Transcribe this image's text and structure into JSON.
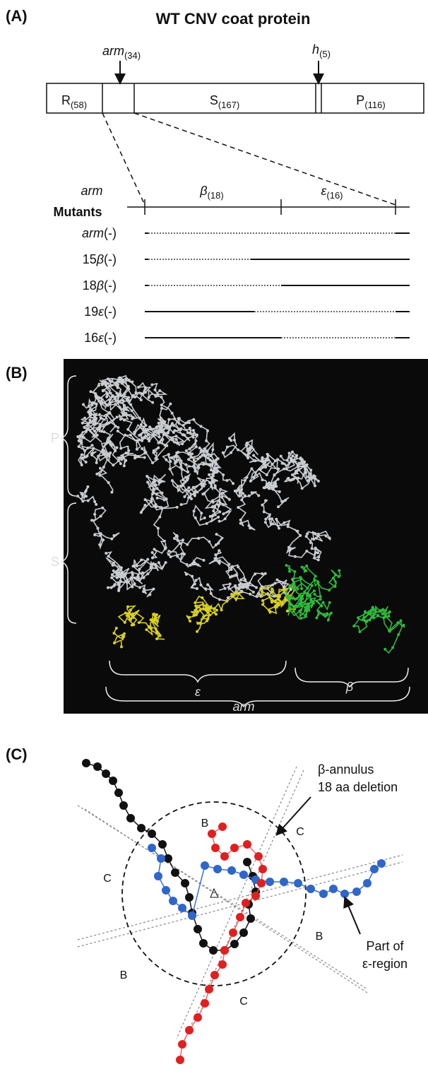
{
  "panel_a": {
    "label": "(A)",
    "title": "WT CNV coat protein",
    "arm_marker": {
      "text": "arm",
      "sub": "(34)"
    },
    "h_marker": {
      "text": "h",
      "sub": "(5)"
    },
    "domains": [
      {
        "text": "R",
        "sub": "(58)"
      },
      {
        "text": "S",
        "sub": "(167)"
      },
      {
        "text": "P",
        "sub": "(116)"
      }
    ],
    "arm_label": "arm",
    "arm_regions": [
      {
        "text": "β",
        "sub": "(18)"
      },
      {
        "text": "ε",
        "sub": "(16)"
      }
    ],
    "mutants_label": "Mutants",
    "mutants": [
      {
        "sym": "arm",
        "tail": "(-)"
      },
      {
        "num": "15",
        "sym": "β",
        "tail": "(-)"
      },
      {
        "num": "18",
        "sym": "β",
        "tail": "(-)"
      },
      {
        "num": "19",
        "sym": "ε",
        "tail": "(-)"
      },
      {
        "num": "16",
        "sym": "ε",
        "tail": "(-)"
      }
    ]
  },
  "panel_b": {
    "label": "(B)",
    "domains": [
      "P",
      "S"
    ],
    "regions": [
      "ε",
      "β",
      "arm"
    ]
  },
  "panel_c": {
    "label": "(C)",
    "callout_top": [
      "β-annulus",
      "18 aa deletion"
    ],
    "callout_bottom": [
      "Part of",
      "ε-region"
    ],
    "sectors": [
      "B",
      "C",
      "C",
      "B",
      "B",
      "C"
    ]
  }
}
